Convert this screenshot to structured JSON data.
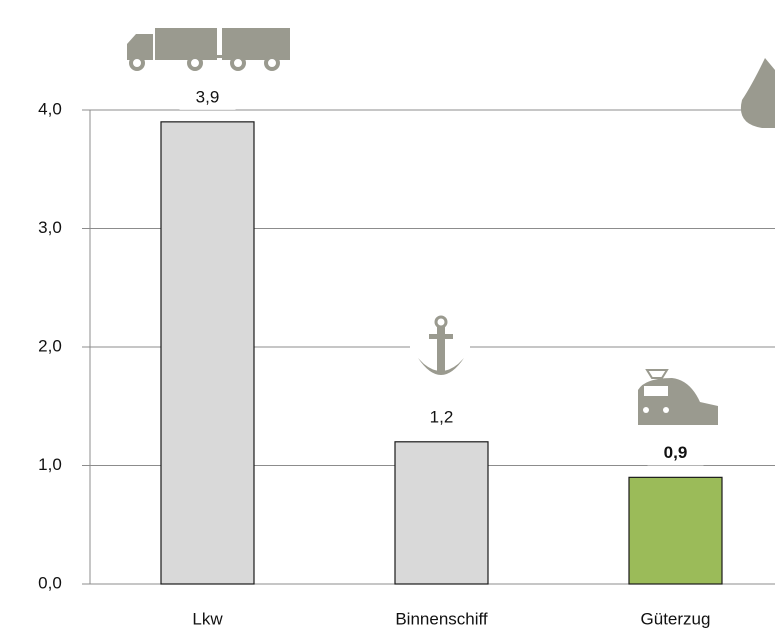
{
  "chart_data": {
    "type": "bar",
    "categories": [
      "Lkw",
      "Binnenschiff",
      "Güterzug"
    ],
    "values": [
      3.9,
      1.2,
      0.9
    ],
    "value_labels": [
      "3,9",
      "1,2",
      "0,9"
    ],
    "value_label_weight": [
      "normal",
      "normal",
      "bold"
    ],
    "colors": [
      "#d9d9d9",
      "#d9d9d9",
      "#9bbb59"
    ],
    "ylim": [
      0,
      4
    ],
    "yticks": [
      {
        "value": 0,
        "label": "0,0"
      },
      {
        "value": 1,
        "label": "1,0"
      },
      {
        "value": 2,
        "label": "2,0"
      },
      {
        "value": 3,
        "label": "3,0"
      },
      {
        "value": 4,
        "label": "4,0"
      }
    ],
    "grid": true
  }
}
